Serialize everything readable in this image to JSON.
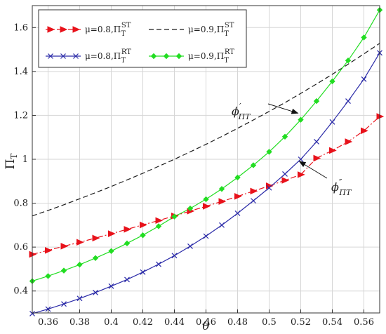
{
  "chart_data": {
    "type": "line",
    "xlabel": "θ",
    "ylabel": "Π_T",
    "xlim": [
      0.35,
      0.57
    ],
    "ylim": [
      0.3,
      1.7
    ],
    "xticks": [
      "0.36",
      "0.38",
      "0.4",
      "0.42",
      "0.44",
      "0.46",
      "0.48",
      "0.5",
      "0.52",
      "0.54",
      "0.56"
    ],
    "yticks": [
      "0.4",
      "0.6",
      "0.8",
      "1",
      "1.2",
      "1.4",
      "1.6"
    ],
    "grid": true,
    "legend": {
      "placement": "top-left",
      "columns": 2
    },
    "x": [
      0.35,
      0.36,
      0.37,
      0.38,
      0.39,
      0.4,
      0.41,
      0.42,
      0.43,
      0.44,
      0.45,
      0.46,
      0.47,
      0.48,
      0.49,
      0.5,
      0.51,
      0.52,
      0.53,
      0.54,
      0.55,
      0.56,
      0.57
    ],
    "series": [
      {
        "name": "μ=0.8,Π_T^ST",
        "legend_prefix": "μ=0.8,Π",
        "legend_sub": "T",
        "legend_sup": "ST",
        "color": "#e8121b",
        "line": "dashdot",
        "marker": "triangle-right",
        "values": [
          0.567,
          0.585,
          0.604,
          0.622,
          0.641,
          0.661,
          0.681,
          0.701,
          0.721,
          0.742,
          0.764,
          0.786,
          0.808,
          0.831,
          0.855,
          0.879,
          0.904,
          0.93,
          1.005,
          1.04,
          1.08,
          1.13,
          1.195
        ]
      },
      {
        "name": "μ=0.9,Π_T^ST",
        "legend_prefix": "μ=0.9,Π",
        "legend_sub": "T",
        "legend_sup": "ST",
        "color": "#1a1a1a",
        "line": "dashed",
        "marker": "none",
        "values": [
          0.742,
          0.767,
          0.793,
          0.82,
          0.848,
          0.876,
          0.906,
          0.936,
          0.968,
          1.0,
          1.034,
          1.068,
          1.104,
          1.141,
          1.179,
          1.218,
          1.258,
          1.3,
          1.343,
          1.387,
          1.433,
          1.48,
          1.528
        ]
      },
      {
        "name": "μ=0.8,Π_T^RT",
        "legend_prefix": "μ=0.8,Π",
        "legend_sub": "T",
        "legend_sup": "RT",
        "color": "#2b2ba8",
        "line": "solid",
        "marker": "x",
        "values": [
          0.297,
          0.318,
          0.341,
          0.366,
          0.393,
          0.422,
          0.452,
          0.486,
          0.522,
          0.561,
          0.604,
          0.65,
          0.7,
          0.754,
          0.811,
          0.87,
          0.933,
          1.0,
          1.08,
          1.17,
          1.265,
          1.365,
          1.485
        ]
      },
      {
        "name": "μ=0.9,Π_T^RT",
        "legend_prefix": "μ=0.9,Π",
        "legend_sub": "T",
        "legend_sup": "RT",
        "color": "#22dd22",
        "line": "solid",
        "marker": "diamond",
        "values": [
          0.445,
          0.468,
          0.493,
          0.52,
          0.55,
          0.582,
          0.617,
          0.654,
          0.695,
          0.739,
          0.776,
          0.818,
          0.865,
          0.917,
          0.973,
          1.034,
          1.103,
          1.18,
          1.265,
          1.355,
          1.45,
          1.555,
          1.68
        ]
      }
    ],
    "annotations": [
      {
        "label": "ϕ′ΠT",
        "base": "ϕ",
        "prime": "′",
        "sub": "ΠT",
        "x": 0.52,
        "y": 1.21
      },
      {
        "label": "ϕ″ΠT",
        "base": "ϕ",
        "prime": "″",
        "sub": "ΠT",
        "x": 0.52,
        "y": 1.0
      }
    ]
  }
}
